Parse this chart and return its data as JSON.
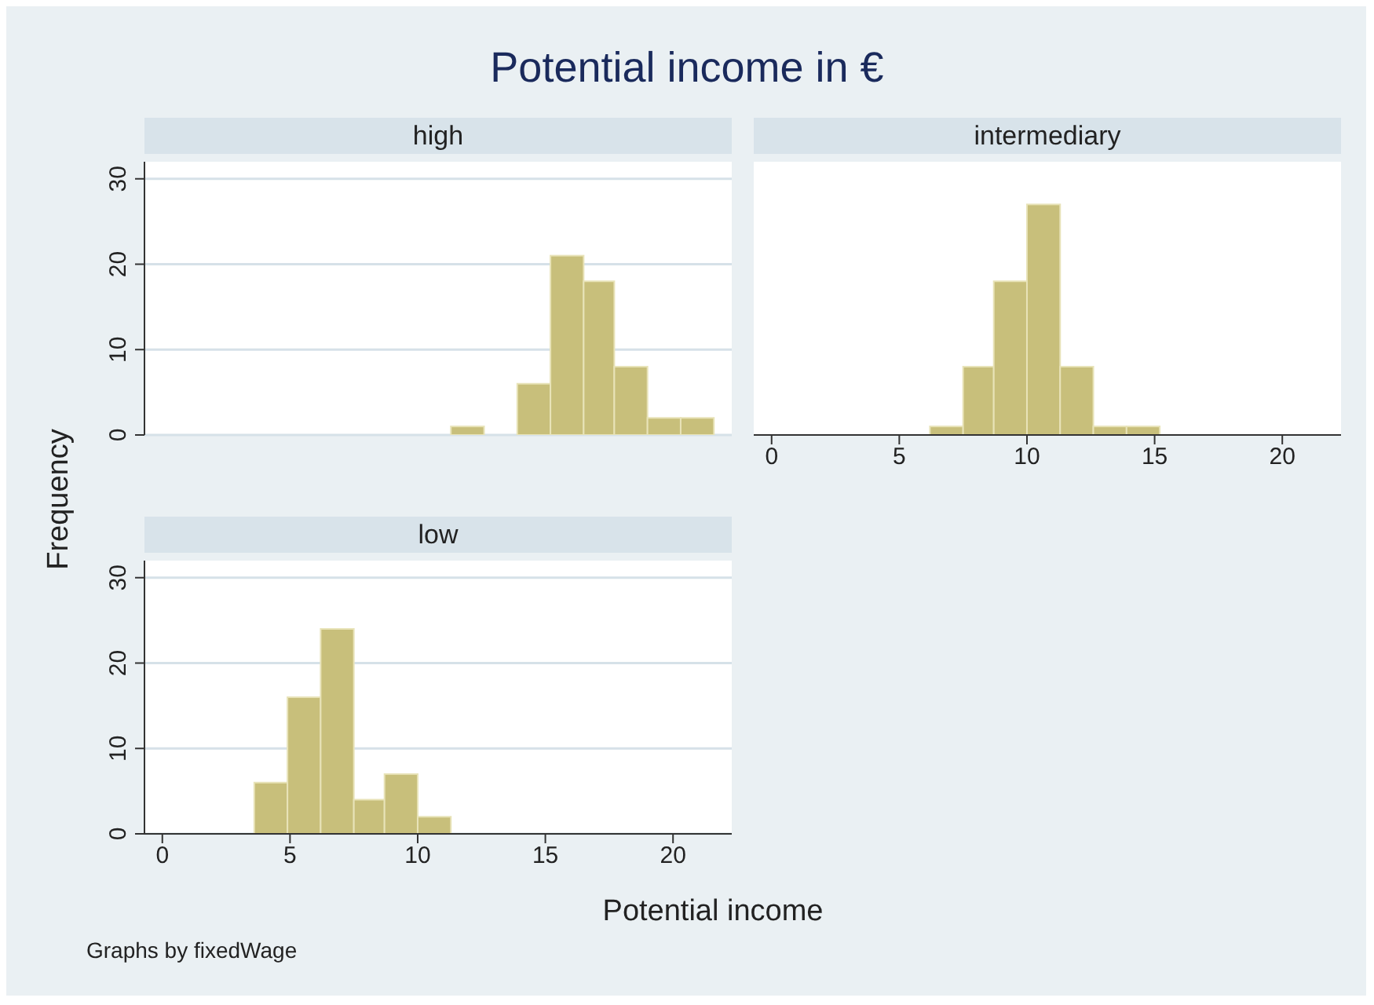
{
  "chart_data": [
    {
      "type": "histogram",
      "title": "Potential income in €",
      "subtitle": "high",
      "bins": [
        11.3,
        12.6,
        13.9,
        15.2,
        16.5,
        17.7,
        19.0,
        20.3,
        21.6
      ],
      "values": [
        1,
        0,
        6,
        21,
        18,
        8,
        2,
        2
      ],
      "color": "#c8bf7b",
      "xlim": [
        -0.7,
        22.3
      ],
      "xticks": [
        0,
        5,
        10,
        15,
        20
      ],
      "ylim": [
        0,
        32
      ],
      "yticks": [
        0,
        10,
        20,
        30
      ],
      "grid": "y",
      "tick_labels": "y"
    },
    {
      "type": "histogram",
      "subtitle": "intermediary",
      "bins": [
        6.2,
        7.5,
        8.7,
        10.0,
        11.3,
        12.6,
        13.9,
        15.2
      ],
      "values": [
        1,
        8,
        18,
        27,
        8,
        1,
        1
      ],
      "color": "#c8bf7b",
      "xlim": [
        -0.7,
        22.3
      ],
      "xticks": [
        0,
        5,
        10,
        15,
        20
      ],
      "ylim": [
        0,
        32
      ],
      "yticks": [
        0,
        10,
        20,
        30
      ],
      "grid": "y",
      "tick_labels": "x"
    },
    {
      "type": "histogram",
      "subtitle": "low",
      "xlabel": "Potential income",
      "ylabel": "Frequency",
      "annotations": [
        "Graphs by fixedWage"
      ],
      "bins": [
        3.6,
        4.9,
        6.2,
        7.5,
        8.7,
        10.0,
        11.3
      ],
      "values": [
        6,
        16,
        24,
        4,
        7,
        2
      ],
      "color": "#c8bf7b",
      "xlim": [
        -0.7,
        22.3
      ],
      "xticks": [
        0,
        5,
        10,
        15,
        20
      ],
      "ylim": [
        0,
        32
      ],
      "yticks": [
        0,
        10,
        20,
        30
      ],
      "grid": "y"
    }
  ]
}
